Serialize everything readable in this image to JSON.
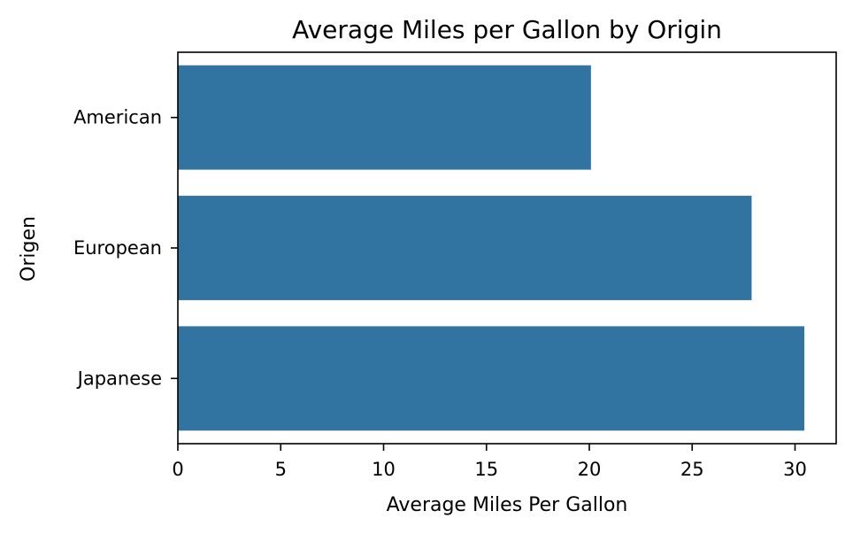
{
  "chart_data": {
    "type": "bar",
    "orientation": "horizontal",
    "title": "Average Miles per Gallon by Origin",
    "xlabel": "Average Miles Per Gallon",
    "ylabel": "Origen",
    "categories": [
      "American",
      "European",
      "Japanese"
    ],
    "values": [
      20.08,
      27.89,
      30.45
    ],
    "xlim": [
      0,
      32
    ],
    "xticks": [
      0,
      5,
      10,
      15,
      20,
      25,
      30
    ],
    "grid": false,
    "legend": "none",
    "bar_color": "#3274a1"
  }
}
